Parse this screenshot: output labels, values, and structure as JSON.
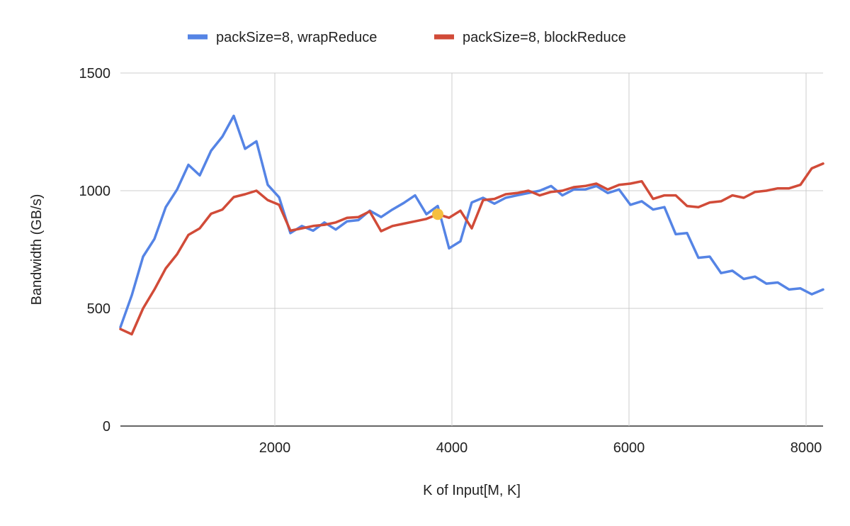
{
  "chart_data": {
    "type": "line",
    "title": "",
    "xlabel": "K of Input[M, K]",
    "ylabel": "Bandwidth (GB/s)",
    "xlim": [
      256,
      8192
    ],
    "ylim": [
      0,
      1500
    ],
    "xticks": [
      2000,
      4000,
      6000,
      8000
    ],
    "yticks": [
      0,
      500,
      1000,
      1500
    ],
    "grid": true,
    "legend_position": "top",
    "series": [
      {
        "name": "packSize=8, wrapReduce",
        "color": "#5584e5",
        "x": [
          256,
          384,
          512,
          640,
          768,
          896,
          1024,
          1152,
          1280,
          1408,
          1536,
          1664,
          1792,
          1920,
          2048,
          2176,
          2304,
          2432,
          2560,
          2688,
          2816,
          2944,
          3072,
          3200,
          3328,
          3456,
          3584,
          3712,
          3840,
          3968,
          4096,
          4224,
          4352,
          4480,
          4608,
          4736,
          4864,
          4992,
          5120,
          5248,
          5376,
          5504,
          5632,
          5760,
          5888,
          6016,
          6144,
          6272,
          6400,
          6528,
          6656,
          6784,
          6912,
          7040,
          7168,
          7296,
          7424,
          7552,
          7680,
          7808,
          7936,
          8064,
          8192
        ],
        "y": [
          420,
          555,
          720,
          795,
          930,
          1005,
          1110,
          1065,
          1170,
          1230,
          1318,
          1178,
          1210,
          1025,
          972,
          820,
          850,
          830,
          865,
          835,
          870,
          875,
          915,
          888,
          920,
          948,
          980,
          900,
          935,
          755,
          785,
          950,
          970,
          945,
          970,
          980,
          990,
          1000,
          1020,
          980,
          1005,
          1005,
          1020,
          990,
          1005,
          940,
          955,
          920,
          930,
          815,
          820,
          715,
          720,
          650,
          660,
          625,
          635,
          605,
          610,
          580,
          585,
          560,
          580
        ]
      },
      {
        "name": "packSize=8, blockReduce",
        "color": "#d14b38",
        "x": [
          256,
          384,
          512,
          640,
          768,
          896,
          1024,
          1152,
          1280,
          1408,
          1536,
          1664,
          1792,
          1920,
          2048,
          2176,
          2304,
          2432,
          2560,
          2688,
          2816,
          2944,
          3072,
          3200,
          3328,
          3456,
          3584,
          3712,
          3840,
          3968,
          4096,
          4224,
          4352,
          4480,
          4608,
          4736,
          4864,
          4992,
          5120,
          5248,
          5376,
          5504,
          5632,
          5760,
          5888,
          6016,
          6144,
          6272,
          6400,
          6528,
          6656,
          6784,
          6912,
          7040,
          7168,
          7296,
          7424,
          7552,
          7680,
          7808,
          7936,
          8064,
          8192
        ],
        "y": [
          412,
          390,
          500,
          580,
          670,
          730,
          812,
          840,
          902,
          920,
          973,
          985,
          1000,
          960,
          940,
          830,
          840,
          850,
          855,
          865,
          885,
          888,
          912,
          828,
          850,
          860,
          870,
          880,
          900,
          885,
          915,
          840,
          960,
          965,
          985,
          990,
          1000,
          980,
          995,
          1000,
          1015,
          1020,
          1030,
          1005,
          1025,
          1030,
          1040,
          965,
          980,
          980,
          935,
          930,
          950,
          955,
          980,
          970,
          995,
          1000,
          1010,
          1010,
          1025,
          1095,
          1115
        ]
      }
    ],
    "highlight_point": {
      "x": 3840,
      "y": 900,
      "color": "#f5bf3f"
    }
  }
}
